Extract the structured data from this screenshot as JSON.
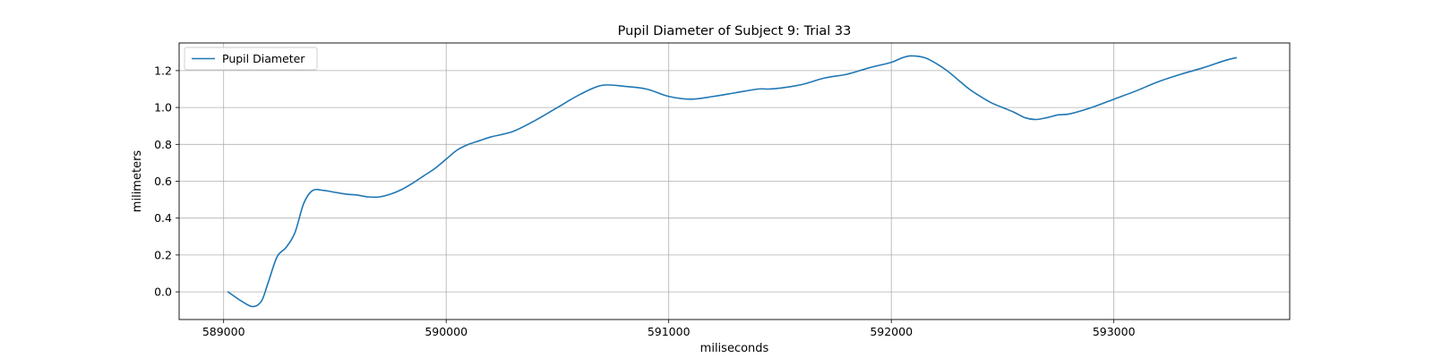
{
  "chart_data": {
    "type": "line",
    "title": "Pupil Diameter of Subject 9: Trial 33",
    "xlabel": "miliseconds",
    "ylabel": "milimeters",
    "xlim": [
      588800,
      593790
    ],
    "ylim": [
      -0.15,
      1.35
    ],
    "xticks": [
      589000,
      590000,
      591000,
      592000,
      593000
    ],
    "yticks": [
      0.0,
      0.2,
      0.4,
      0.6,
      0.8,
      1.0,
      1.2
    ],
    "ytick_labels": [
      "0.0",
      "0.2",
      "0.4",
      "0.6",
      "0.8",
      "1.0",
      "1.2"
    ],
    "grid": true,
    "legend_position": "upper-left",
    "series": [
      {
        "name": "Pupil Diameter",
        "color": "#1f77b4",
        "x": [
          589020,
          589080,
          589130,
          589170,
          589200,
          589240,
          589280,
          589320,
          589360,
          589400,
          589450,
          589500,
          589550,
          589600,
          589650,
          589700,
          589750,
          589800,
          589850,
          589900,
          589950,
          590000,
          590050,
          590100,
          590150,
          590200,
          590300,
          590400,
          590500,
          590600,
          590700,
          590800,
          590900,
          591000,
          591100,
          591200,
          591300,
          591400,
          591450,
          591500,
          591600,
          591700,
          591800,
          591900,
          592000,
          592050,
          592090,
          592150,
          592200,
          592250,
          592300,
          592350,
          592400,
          592450,
          592500,
          592550,
          592600,
          592650,
          592700,
          592750,
          592800,
          592900,
          593000,
          593100,
          593200,
          593300,
          593400,
          593500,
          593550
        ],
        "y": [
          0.0,
          -0.05,
          -0.08,
          -0.05,
          0.05,
          0.19,
          0.24,
          0.32,
          0.48,
          0.55,
          0.55,
          0.54,
          0.53,
          0.525,
          0.515,
          0.515,
          0.53,
          0.555,
          0.59,
          0.63,
          0.67,
          0.72,
          0.77,
          0.8,
          0.82,
          0.84,
          0.87,
          0.93,
          1.0,
          1.07,
          1.12,
          1.115,
          1.1,
          1.06,
          1.045,
          1.06,
          1.08,
          1.1,
          1.1,
          1.105,
          1.125,
          1.16,
          1.18,
          1.215,
          1.245,
          1.27,
          1.28,
          1.27,
          1.24,
          1.2,
          1.15,
          1.1,
          1.06,
          1.025,
          1.0,
          0.975,
          0.945,
          0.935,
          0.945,
          0.96,
          0.965,
          1.0,
          1.045,
          1.09,
          1.14,
          1.18,
          1.215,
          1.255,
          1.27
        ]
      }
    ]
  }
}
